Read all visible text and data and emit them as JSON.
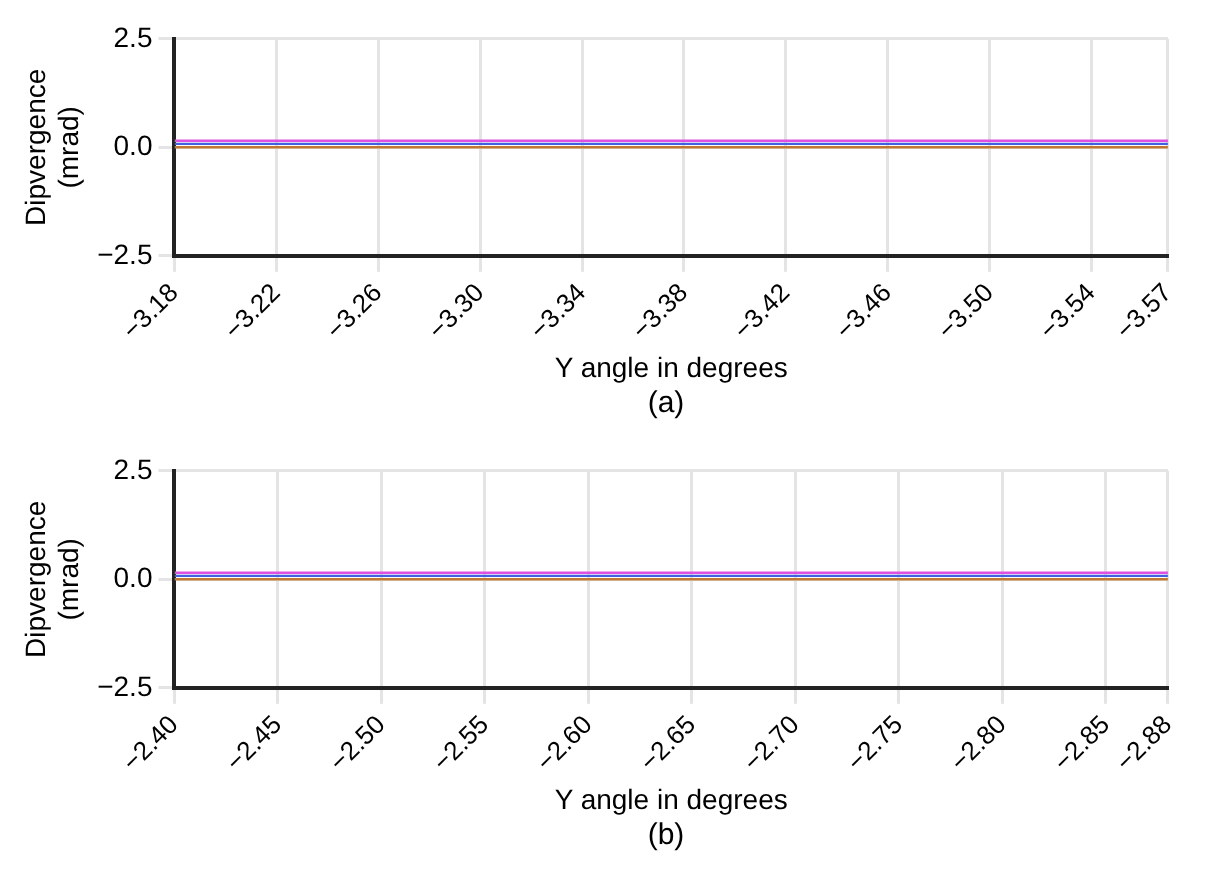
{
  "chart_data": [
    {
      "type": "line",
      "xlabel": "Y angle in degrees",
      "ylabel": "Dipvergence (mrad)",
      "annotations": [
        "(a)"
      ],
      "xlim": [
        -3.18,
        -3.57
      ],
      "xticks": [
        {
          "value": -3.18,
          "label": "−3.18"
        },
        {
          "value": -3.22,
          "label": "−3.22"
        },
        {
          "value": -3.26,
          "label": "−3.26"
        },
        {
          "value": -3.3,
          "label": "−3.30"
        },
        {
          "value": -3.34,
          "label": "−3.34"
        },
        {
          "value": -3.38,
          "label": "−3.38"
        },
        {
          "value": -3.42,
          "label": "−3.42"
        },
        {
          "value": -3.46,
          "label": "−3.46"
        },
        {
          "value": -3.5,
          "label": "−3.50"
        },
        {
          "value": -3.54,
          "label": "−3.54"
        },
        {
          "value": -3.57,
          "label": "−3.57"
        }
      ],
      "ylim": [
        -2.5,
        2.5
      ],
      "yticks": [
        {
          "value": -2.5,
          "label": "−2.5"
        },
        {
          "value": 0,
          "label": "0.0"
        },
        {
          "value": 2.5,
          "label": "2.5"
        }
      ],
      "grid": true,
      "legend": false,
      "marker": "none",
      "x": [
        -3.18,
        -3.57
      ],
      "series": [
        {
          "color": "#c07830",
          "values": [
            0,
            0
          ]
        },
        {
          "color": "#e050e0",
          "values": [
            0.15,
            0.15
          ]
        },
        {
          "color": "#4060e0",
          "values": [
            0.08,
            0.08
          ]
        }
      ]
    },
    {
      "type": "line",
      "xlabel": "Y angle in degrees",
      "ylabel": "Dipvergence (mrad)",
      "annotations": [
        "(b)"
      ],
      "xlim": [
        -2.4,
        -2.88
      ],
      "xticks": [
        {
          "value": -2.4,
          "label": "−2.40"
        },
        {
          "value": -2.45,
          "label": "−2.45"
        },
        {
          "value": -2.5,
          "label": "−2.50"
        },
        {
          "value": -2.55,
          "label": "−2.55"
        },
        {
          "value": -2.6,
          "label": "−2.60"
        },
        {
          "value": -2.65,
          "label": "−2.65"
        },
        {
          "value": -2.7,
          "label": "−2.70"
        },
        {
          "value": -2.75,
          "label": "−2.75"
        },
        {
          "value": -2.8,
          "label": "−2.80"
        },
        {
          "value": -2.85,
          "label": "−2.85"
        },
        {
          "value": -2.88,
          "label": "−2.88"
        }
      ],
      "ylim": [
        -2.5,
        2.5
      ],
      "yticks": [
        {
          "value": -2.5,
          "label": "−2.5"
        },
        {
          "value": 0,
          "label": "0.0"
        },
        {
          "value": 2.5,
          "label": "2.5"
        }
      ],
      "grid": true,
      "legend": false,
      "marker": "none",
      "x": [
        -2.4,
        -2.88
      ],
      "series": [
        {
          "color": "#c07830",
          "values": [
            0,
            0
          ]
        },
        {
          "color": "#e050e0",
          "values": [
            0.15,
            0.15
          ]
        },
        {
          "color": "#4060e0",
          "values": [
            0.08,
            0.08
          ]
        }
      ]
    }
  ]
}
